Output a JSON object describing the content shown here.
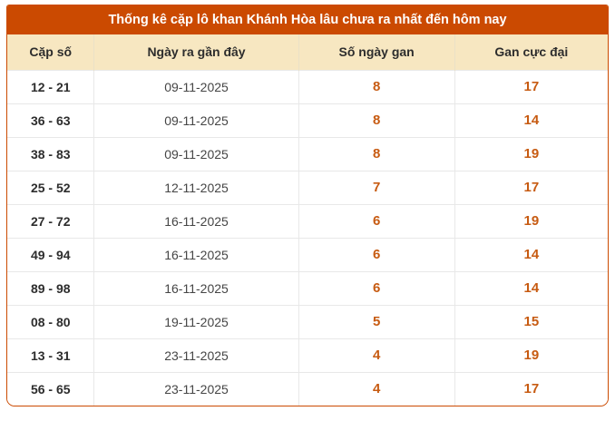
{
  "table": {
    "title": "Thống kê cặp lô khan Khánh Hòa lâu chưa ra nhất đến hôm nay",
    "columns": [
      "Cặp số",
      "Ngày ra gần đây",
      "Số ngày gan",
      "Gan cực đại"
    ],
    "rows": [
      {
        "pair": "12 - 21",
        "last_date": "09-11-2025",
        "gan_days": "8",
        "max_gan": "17"
      },
      {
        "pair": "36 - 63",
        "last_date": "09-11-2025",
        "gan_days": "8",
        "max_gan": "14"
      },
      {
        "pair": "38 - 83",
        "last_date": "09-11-2025",
        "gan_days": "8",
        "max_gan": "19"
      },
      {
        "pair": "25 - 52",
        "last_date": "12-11-2025",
        "gan_days": "7",
        "max_gan": "17"
      },
      {
        "pair": "27 - 72",
        "last_date": "16-11-2025",
        "gan_days": "6",
        "max_gan": "19"
      },
      {
        "pair": "49 - 94",
        "last_date": "16-11-2025",
        "gan_days": "6",
        "max_gan": "14"
      },
      {
        "pair": "89 - 98",
        "last_date": "16-11-2025",
        "gan_days": "6",
        "max_gan": "14"
      },
      {
        "pair": "08 - 80",
        "last_date": "19-11-2025",
        "gan_days": "5",
        "max_gan": "15"
      },
      {
        "pair": "13 - 31",
        "last_date": "23-11-2025",
        "gan_days": "4",
        "max_gan": "19"
      },
      {
        "pair": "56 - 65",
        "last_date": "23-11-2025",
        "gan_days": "4",
        "max_gan": "17"
      }
    ]
  },
  "colors": {
    "accent": "#cb4a01",
    "header_bg": "#f7e7c1",
    "gan_text": "#c75b12"
  }
}
